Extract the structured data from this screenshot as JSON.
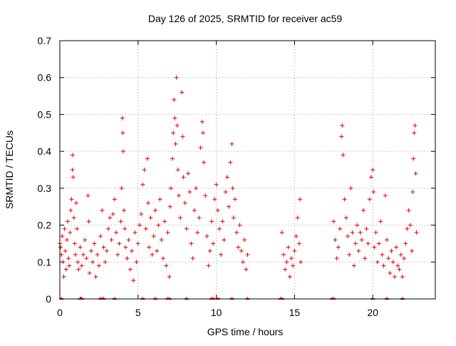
{
  "chart_data": {
    "type": "scatter",
    "title": "Day 126 of 2025, SRMTID for receiver ac59",
    "xlabel": "GPS time / hours",
    "ylabel": "SRMTID / TECUs",
    "xlim": [
      0,
      24
    ],
    "ylim": [
      0,
      0.7
    ],
    "x_ticks": [
      "0",
      "5",
      "10",
      "15",
      "20"
    ],
    "x_tick_values": [
      0,
      5,
      10,
      15,
      20
    ],
    "y_ticks": [
      "0",
      "0.1",
      "0.2",
      "0.3",
      "0.4",
      "0.5",
      "0.6",
      "0.7"
    ],
    "y_tick_values": [
      0,
      0.1,
      0.2,
      0.3,
      0.4,
      0.5,
      0.6,
      0.7
    ],
    "grid": true,
    "marker": "+",
    "color": "#e00000",
    "gaps_hours": [
      [
        12.2,
        14.1
      ],
      [
        15.5,
        17.4
      ]
    ],
    "series": [
      {
        "name": "SRMTID",
        "points": [
          [
            0.0,
            0.15
          ],
          [
            0.05,
            0.14
          ],
          [
            0.1,
            0.12
          ],
          [
            0.15,
            0.17
          ],
          [
            0.2,
            0.1
          ],
          [
            0.25,
            0.06
          ],
          [
            0.3,
            0.19
          ],
          [
            0.35,
            0.13
          ],
          [
            0.4,
            0.08
          ],
          [
            0.45,
            0.16
          ],
          [
            0.5,
            0.21
          ],
          [
            0.55,
            0.11
          ],
          [
            0.6,
            0.09
          ],
          [
            0.65,
            0.18
          ],
          [
            0.7,
            0.24
          ],
          [
            0.75,
            0.27
          ],
          [
            0.8,
            0.35
          ],
          [
            0.82,
            0.39
          ],
          [
            0.85,
            0.33
          ],
          [
            0.9,
            0.22
          ],
          [
            0.95,
            0.15
          ],
          [
            1.0,
            0.12
          ],
          [
            1.05,
            0.26
          ],
          [
            1.1,
            0.19
          ],
          [
            1.15,
            0.1
          ],
          [
            1.2,
            0.08
          ],
          [
            1.3,
            0.14
          ],
          [
            1.4,
            0.09
          ],
          [
            1.5,
            0.12
          ],
          [
            1.6,
            0.16
          ],
          [
            1.7,
            0.11
          ],
          [
            1.8,
            0.28
          ],
          [
            1.85,
            0.21
          ],
          [
            1.9,
            0.07
          ],
          [
            2.0,
            0.13
          ],
          [
            2.1,
            0.1
          ],
          [
            2.2,
            0.15
          ],
          [
            2.3,
            0.06
          ],
          [
            2.4,
            0.12
          ],
          [
            2.5,
            0.09
          ],
          [
            2.6,
            0.17
          ],
          [
            2.7,
            0.24
          ],
          [
            2.8,
            0.14
          ],
          [
            2.9,
            0.1
          ],
          [
            3.0,
            0.13
          ],
          [
            3.1,
            0.19
          ],
          [
            3.2,
            0.22
          ],
          [
            3.3,
            0.16
          ],
          [
            3.4,
            0.23
          ],
          [
            3.5,
            0.27
          ],
          [
            3.6,
            0.18
          ],
          [
            3.7,
            0.12
          ],
          [
            3.8,
            0.15
          ],
          [
            3.9,
            0.21
          ],
          [
            3.95,
            0.3
          ],
          [
            4.0,
            0.49
          ],
          [
            4.02,
            0.45
          ],
          [
            4.05,
            0.4
          ],
          [
            4.1,
            0.24
          ],
          [
            4.15,
            0.19
          ],
          [
            4.2,
            0.14
          ],
          [
            4.3,
            0.11
          ],
          [
            4.4,
            0.16
          ],
          [
            4.5,
            0.08
          ],
          [
            4.6,
            0.13
          ],
          [
            4.7,
            0.05
          ],
          [
            4.8,
            0.18
          ],
          [
            4.9,
            0.1
          ],
          [
            5.0,
            0.15
          ],
          [
            5.1,
            0.2
          ],
          [
            5.2,
            0.23
          ],
          [
            5.3,
            0.31
          ],
          [
            5.4,
            0.35
          ],
          [
            5.5,
            0.19
          ],
          [
            5.6,
            0.38
          ],
          [
            5.65,
            0.26
          ],
          [
            5.7,
            0.14
          ],
          [
            5.8,
            0.22
          ],
          [
            5.9,
            0.12
          ],
          [
            6.0,
            0.17
          ],
          [
            6.1,
            0.24
          ],
          [
            6.2,
            0.13
          ],
          [
            6.3,
            0.2
          ],
          [
            6.4,
            0.27
          ],
          [
            6.5,
            0.16
          ],
          [
            6.6,
            0.11
          ],
          [
            6.7,
            0.21
          ],
          [
            6.8,
            0.09
          ],
          [
            6.9,
            0.18
          ],
          [
            7.0,
            0.06
          ],
          [
            7.05,
            0.25
          ],
          [
            7.1,
            0.3
          ],
          [
            7.2,
            0.38
          ],
          [
            7.25,
            0.45
          ],
          [
            7.3,
            0.54
          ],
          [
            7.35,
            0.49
          ],
          [
            7.4,
            0.42
          ],
          [
            7.45,
            0.6
          ],
          [
            7.5,
            0.47
          ],
          [
            7.55,
            0.35
          ],
          [
            7.6,
            0.28
          ],
          [
            7.7,
            0.22
          ],
          [
            7.8,
            0.56
          ],
          [
            7.85,
            0.44
          ],
          [
            7.9,
            0.33
          ],
          [
            8.0,
            0.26
          ],
          [
            8.1,
            0.19
          ],
          [
            8.2,
            0.34
          ],
          [
            8.3,
            0.29
          ],
          [
            8.4,
            0.15
          ],
          [
            8.5,
            0.11
          ],
          [
            8.6,
            0.24
          ],
          [
            8.7,
            0.3
          ],
          [
            8.8,
            0.18
          ],
          [
            8.9,
            0.22
          ],
          [
            9.0,
            0.41
          ],
          [
            9.1,
            0.48
          ],
          [
            9.15,
            0.45
          ],
          [
            9.2,
            0.37
          ],
          [
            9.3,
            0.28
          ],
          [
            9.4,
            0.17
          ],
          [
            9.5,
            0.09
          ],
          [
            9.6,
            0.13
          ],
          [
            9.7,
            0.21
          ],
          [
            9.8,
            0.15
          ],
          [
            9.9,
            0.27
          ],
          [
            10.0,
            0.31
          ],
          [
            10.1,
            0.24
          ],
          [
            10.2,
            0.19
          ],
          [
            10.3,
            0.12
          ],
          [
            10.4,
            0.21
          ],
          [
            10.5,
            0.16
          ],
          [
            10.6,
            0.29
          ],
          [
            10.7,
            0.33
          ],
          [
            10.8,
            0.25
          ],
          [
            10.9,
            0.37
          ],
          [
            11.0,
            0.42
          ],
          [
            11.05,
            0.3
          ],
          [
            11.1,
            0.22
          ],
          [
            11.2,
            0.27
          ],
          [
            11.3,
            0.18
          ],
          [
            11.4,
            0.14
          ],
          [
            11.5,
            0.2
          ],
          [
            11.6,
            0.13
          ],
          [
            11.7,
            0.1
          ],
          [
            11.8,
            0.16
          ],
          [
            11.9,
            0.08
          ],
          [
            12.0,
            0.12
          ],
          [
            14.2,
            0.18
          ],
          [
            14.3,
            0.12
          ],
          [
            14.4,
            0.08
          ],
          [
            14.5,
            0.1
          ],
          [
            14.6,
            0.14
          ],
          [
            14.7,
            0.06
          ],
          [
            14.8,
            0.11
          ],
          [
            14.9,
            0.09
          ],
          [
            15.0,
            0.13
          ],
          [
            15.1,
            0.17
          ],
          [
            15.2,
            0.22
          ],
          [
            15.3,
            0.15
          ],
          [
            15.35,
            0.27
          ],
          [
            15.4,
            0.1
          ],
          [
            17.5,
            0.21
          ],
          [
            17.6,
            0.16
          ],
          [
            17.7,
            0.11
          ],
          [
            17.8,
            0.14
          ],
          [
            17.9,
            0.19
          ],
          [
            18.0,
            0.44
          ],
          [
            18.05,
            0.47
          ],
          [
            18.1,
            0.39
          ],
          [
            18.2,
            0.27
          ],
          [
            18.3,
            0.22
          ],
          [
            18.4,
            0.17
          ],
          [
            18.5,
            0.12
          ],
          [
            18.6,
            0.3
          ],
          [
            18.7,
            0.18
          ],
          [
            18.8,
            0.09
          ],
          [
            18.9,
            0.15
          ],
          [
            19.0,
            0.2
          ],
          [
            19.1,
            0.13
          ],
          [
            19.2,
            0.18
          ],
          [
            19.3,
            0.16
          ],
          [
            19.4,
            0.24
          ],
          [
            19.5,
            0.11
          ],
          [
            19.6,
            0.19
          ],
          [
            19.7,
            0.15
          ],
          [
            19.8,
            0.27
          ],
          [
            19.9,
            0.33
          ],
          [
            20.0,
            0.35
          ],
          [
            20.05,
            0.29
          ],
          [
            20.1,
            0.14
          ],
          [
            20.2,
            0.18
          ],
          [
            20.3,
            0.1
          ],
          [
            20.4,
            0.15
          ],
          [
            20.5,
            0.21
          ],
          [
            20.6,
            0.12
          ],
          [
            20.7,
            0.09
          ],
          [
            20.8,
            0.28
          ],
          [
            20.9,
            0.16
          ],
          [
            21.0,
            0.11
          ],
          [
            21.1,
            0.07
          ],
          [
            21.2,
            0.13
          ],
          [
            21.3,
            0.1
          ],
          [
            21.4,
            0.06
          ],
          [
            21.5,
            0.14
          ],
          [
            21.6,
            0.09
          ],
          [
            21.7,
            0.08
          ],
          [
            21.8,
            0.12
          ],
          [
            21.9,
            0.06
          ],
          [
            22.0,
            0.11
          ],
          [
            22.1,
            0.15
          ],
          [
            22.2,
            0.19
          ],
          [
            22.3,
            0.24
          ],
          [
            22.4,
            0.2
          ],
          [
            22.5,
            0.13
          ],
          [
            22.55,
            0.29
          ],
          [
            22.6,
            0.38
          ],
          [
            22.65,
            0.45
          ],
          [
            22.7,
            0.47
          ],
          [
            22.75,
            0.34
          ],
          [
            22.8,
            0.18
          ]
        ]
      }
    ],
    "zero_markers": [
      0.1,
      1.3,
      1.35,
      1.4,
      2.6,
      2.7,
      2.8,
      3.5,
      5.3,
      6.1,
      6.9,
      7.0,
      8.1,
      9.7,
      9.8,
      10.1,
      11.0,
      12.0,
      14.1,
      14.2,
      17.4,
      17.5,
      20.0,
      20.9,
      21.9
    ]
  }
}
